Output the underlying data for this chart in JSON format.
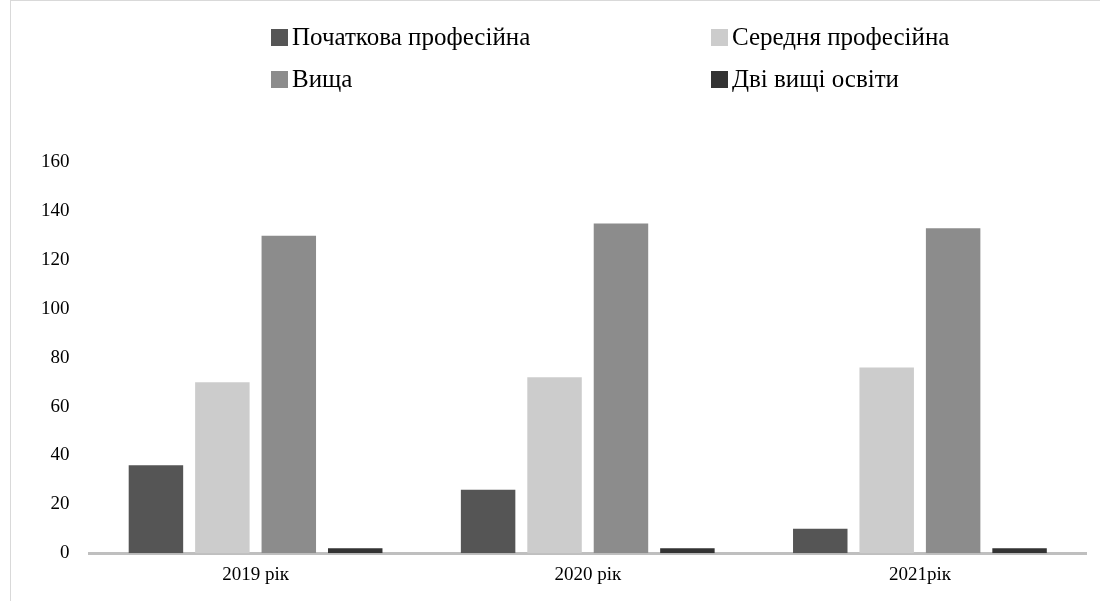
{
  "chart_data": {
    "type": "bar",
    "categories": [
      "2019 рік",
      "2020 рік",
      "2021рік"
    ],
    "series": [
      {
        "name": "Початкова професійна",
        "color": "#555555",
        "values": [
          36,
          26,
          10
        ]
      },
      {
        "name": "Середня професійна",
        "color": "#cccccc",
        "values": [
          70,
          72,
          76
        ]
      },
      {
        "name": "Вища",
        "color": "#8c8c8c",
        "values": [
          130,
          135,
          133
        ]
      },
      {
        "name": "Дві вищі освіти",
        "color": "#333333",
        "values": [
          2,
          2,
          2
        ]
      }
    ],
    "ylim": [
      0,
      160
    ],
    "yticks": [
      0,
      20,
      40,
      60,
      80,
      100,
      120,
      140,
      160
    ],
    "grid": false,
    "legend": "top"
  }
}
